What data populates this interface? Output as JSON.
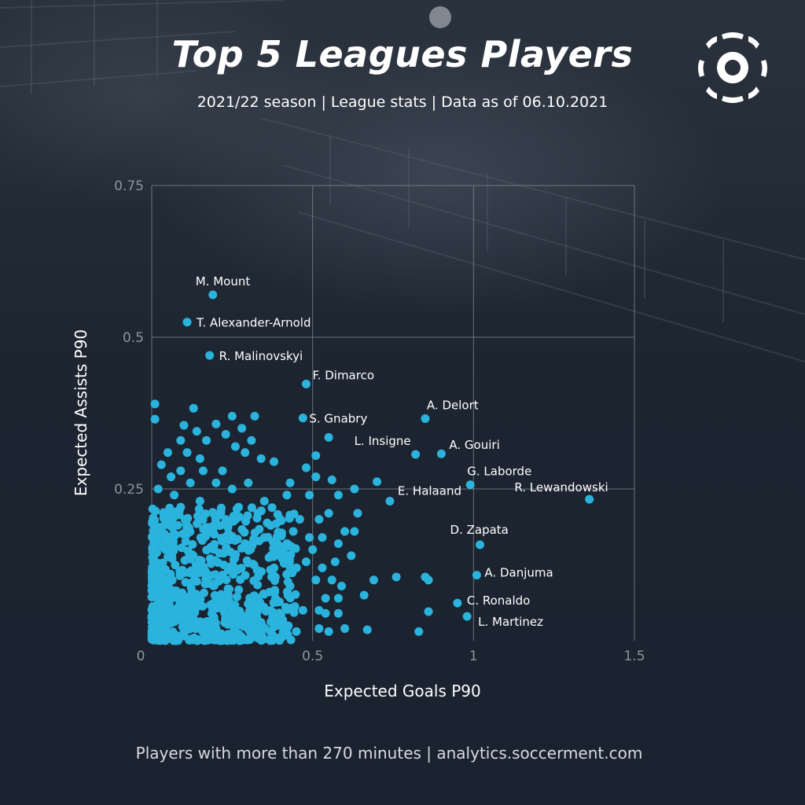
{
  "title": "Top 5 Leagues Players",
  "subtitle": "2021/22 season | League stats | Data as of 06.10.2021",
  "footer": "Players with more than 270 minutes |  analytics.soccerment.com",
  "colors": {
    "point": "#2ab3dc",
    "grid": "#8c929b",
    "background": "#1c2330"
  },
  "logo": "soccerment-ball-logo",
  "chart_data": {
    "type": "scatter",
    "xlabel": "Expected Goals P90",
    "ylabel": "Expected Assists P90",
    "xlim": [
      0,
      1.5
    ],
    "ylim": [
      0,
      0.75
    ],
    "x_ticks": [
      {
        "v": 0,
        "label": "0"
      },
      {
        "v": 0.5,
        "label": "0.5"
      },
      {
        "v": 1,
        "label": "1"
      },
      {
        "v": 1.5,
        "label": "1.5"
      }
    ],
    "y_ticks": [
      {
        "v": 0.25,
        "label": "0.25"
      },
      {
        "v": 0.5,
        "label": "0.5"
      },
      {
        "v": 0.75,
        "label": "0.75"
      }
    ],
    "grid": true,
    "labeled_points": [
      {
        "name": "M. Mount",
        "x": 0.19,
        "y": 0.57
      },
      {
        "name": "T. Alexander-Arnold",
        "x": 0.11,
        "y": 0.525
      },
      {
        "name": "R. Malinovskyi",
        "x": 0.18,
        "y": 0.47
      },
      {
        "name": "F. Dimarco",
        "x": 0.48,
        "y": 0.423
      },
      {
        "name": "S. Gnabry",
        "x": 0.47,
        "y": 0.367
      },
      {
        "name": "A. Delort",
        "x": 0.85,
        "y": 0.366
      },
      {
        "name": "L. Insigne",
        "x": 0.82,
        "y": 0.307
      },
      {
        "name": "A. Gouiri",
        "x": 0.9,
        "y": 0.308
      },
      {
        "name": "G. Laborde",
        "x": 0.99,
        "y": 0.257
      },
      {
        "name": "R. Lewandowski",
        "x": 1.36,
        "y": 0.233
      },
      {
        "name": "E. Halaand",
        "x": 0.74,
        "y": 0.23
      },
      {
        "name": "D. Zapata",
        "x": 1.02,
        "y": 0.158
      },
      {
        "name": "A. Danjuma",
        "x": 1.01,
        "y": 0.108
      },
      {
        "name": "C. Ronaldo",
        "x": 0.95,
        "y": 0.062
      },
      {
        "name": "L. Martinez",
        "x": 0.98,
        "y": 0.04
      }
    ],
    "other_points": [
      [
        0.01,
        0.39
      ],
      [
        0.01,
        0.365
      ],
      [
        0.13,
        0.383
      ],
      [
        0.1,
        0.355
      ],
      [
        0.14,
        0.345
      ],
      [
        0.2,
        0.357
      ],
      [
        0.25,
        0.37
      ],
      [
        0.32,
        0.37
      ],
      [
        0.23,
        0.34
      ],
      [
        0.28,
        0.35
      ],
      [
        0.31,
        0.33
      ],
      [
        0.17,
        0.33
      ],
      [
        0.09,
        0.33
      ],
      [
        0.05,
        0.31
      ],
      [
        0.11,
        0.31
      ],
      [
        0.15,
        0.3
      ],
      [
        0.26,
        0.32
      ],
      [
        0.29,
        0.31
      ],
      [
        0.34,
        0.3
      ],
      [
        0.38,
        0.295
      ],
      [
        0.48,
        0.285
      ],
      [
        0.55,
        0.335
      ],
      [
        0.51,
        0.305
      ],
      [
        0.51,
        0.27
      ],
      [
        0.56,
        0.265
      ],
      [
        0.7,
        0.262
      ],
      [
        0.63,
        0.25
      ],
      [
        0.64,
        0.21
      ],
      [
        0.58,
        0.24
      ],
      [
        0.49,
        0.24
      ],
      [
        0.42,
        0.24
      ],
      [
        0.35,
        0.23
      ],
      [
        0.3,
        0.26
      ],
      [
        0.25,
        0.25
      ],
      [
        0.2,
        0.26
      ],
      [
        0.12,
        0.26
      ],
      [
        0.06,
        0.27
      ],
      [
        0.03,
        0.29
      ],
      [
        0.09,
        0.28
      ],
      [
        0.16,
        0.28
      ],
      [
        0.22,
        0.28
      ],
      [
        0.43,
        0.26
      ],
      [
        0.46,
        0.2
      ],
      [
        0.52,
        0.2
      ],
      [
        0.55,
        0.21
      ],
      [
        0.6,
        0.18
      ],
      [
        0.63,
        0.18
      ],
      [
        0.58,
        0.16
      ],
      [
        0.53,
        0.17
      ],
      [
        0.49,
        0.17
      ],
      [
        0.44,
        0.18
      ],
      [
        0.4,
        0.2
      ],
      [
        0.37,
        0.19
      ],
      [
        0.33,
        0.21
      ],
      [
        0.27,
        0.22
      ],
      [
        0.23,
        0.2
      ],
      [
        0.62,
        0.14
      ],
      [
        0.57,
        0.13
      ],
      [
        0.53,
        0.12
      ],
      [
        0.51,
        0.1
      ],
      [
        0.56,
        0.1
      ],
      [
        0.59,
        0.09
      ],
      [
        0.58,
        0.07
      ],
      [
        0.54,
        0.07
      ],
      [
        0.69,
        0.1
      ],
      [
        0.76,
        0.105
      ],
      [
        0.85,
        0.105
      ],
      [
        0.86,
        0.1
      ],
      [
        0.66,
        0.075
      ],
      [
        0.54,
        0.045
      ],
      [
        0.58,
        0.045
      ],
      [
        0.6,
        0.02
      ],
      [
        0.55,
        0.015
      ],
      [
        0.52,
        0.02
      ],
      [
        0.67,
        0.018
      ],
      [
        0.83,
        0.015
      ],
      [
        0.86,
        0.048
      ],
      [
        0.52,
        0.05
      ],
      [
        0.47,
        0.05
      ],
      [
        0.42,
        0.02
      ],
      [
        0.38,
        0.025
      ],
      [
        0.34,
        0.03
      ],
      [
        0.32,
        0.02
      ],
      [
        0.26,
        0.04
      ],
      [
        0.2,
        0.02
      ],
      [
        0.16,
        0.03
      ],
      [
        0.43,
        0.09
      ],
      [
        0.41,
        0.14
      ],
      [
        0.38,
        0.12
      ],
      [
        0.35,
        0.17
      ],
      [
        0.29,
        0.16
      ],
      [
        0.2,
        0.19
      ],
      [
        0.09,
        0.22
      ],
      [
        0.07,
        0.24
      ],
      [
        0.02,
        0.25
      ],
      [
        0.04,
        0.2
      ],
      [
        0.15,
        0.23
      ],
      [
        0.48,
        0.13
      ],
      [
        0.45,
        0.12
      ],
      [
        0.5,
        0.15
      ],
      [
        0.42,
        0.16
      ]
    ],
    "cluster": {
      "x_range": [
        0,
        0.45
      ],
      "y_range": [
        0,
        0.22
      ],
      "count": 700
    }
  }
}
